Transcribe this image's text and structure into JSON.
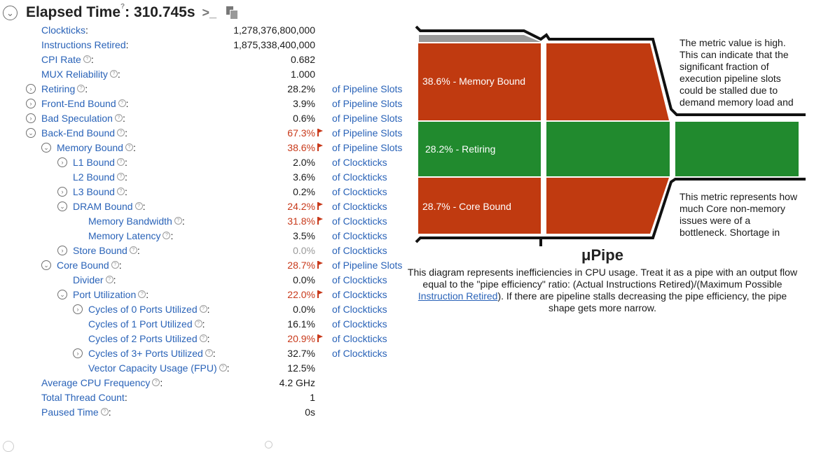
{
  "header": {
    "title": "Elapsed Time",
    "help_glyph": "?",
    "value": ": 310.745s",
    "icons": [
      "collapse-icon",
      "terminal-icon",
      "copy-icon"
    ]
  },
  "metrics": [
    {
      "label": "Clockticks",
      "suffix": ":",
      "value": "1,278,376,800,000",
      "unit": "",
      "indent": 0,
      "expander": "none",
      "help": false,
      "flag": false,
      "color": "normal"
    },
    {
      "label": "Instructions Retired",
      "suffix": ":",
      "value": "1,875,338,400,000",
      "unit": "",
      "indent": 0,
      "expander": "none",
      "help": false,
      "flag": false,
      "color": "normal"
    },
    {
      "label": "CPI Rate",
      "suffix": ":",
      "value": "0.682",
      "unit": "",
      "indent": 0,
      "expander": "none",
      "help": true,
      "flag": false,
      "color": "normal"
    },
    {
      "label": "MUX Reliability",
      "suffix": ":",
      "value": "1.000",
      "unit": "",
      "indent": 0,
      "expander": "none",
      "help": true,
      "flag": false,
      "color": "normal"
    },
    {
      "label": "Retiring",
      "suffix": ":",
      "value": "28.2%",
      "unit": "of Pipeline Slots",
      "indent": 0,
      "expander": "collapsed",
      "help": true,
      "flag": false,
      "color": "normal"
    },
    {
      "label": "Front-End Bound",
      "suffix": ":",
      "value": "3.9%",
      "unit": "of Pipeline Slots",
      "indent": 0,
      "expander": "collapsed",
      "help": true,
      "flag": false,
      "color": "normal"
    },
    {
      "label": "Bad Speculation",
      "suffix": ":",
      "value": "0.6%",
      "unit": "of Pipeline Slots",
      "indent": 0,
      "expander": "collapsed",
      "help": true,
      "flag": false,
      "color": "normal"
    },
    {
      "label": "Back-End Bound",
      "suffix": ":",
      "value": "67.3%",
      "unit": "of Pipeline Slots",
      "indent": 0,
      "expander": "expanded",
      "help": true,
      "flag": true,
      "color": "red"
    },
    {
      "label": "Memory Bound",
      "suffix": ":",
      "value": "38.6%",
      "unit": "of Pipeline Slots",
      "indent": 1,
      "expander": "expanded",
      "help": true,
      "flag": true,
      "color": "red"
    },
    {
      "label": "L1 Bound",
      "suffix": ":",
      "value": "2.0%",
      "unit": "of Clockticks",
      "indent": 2,
      "expander": "collapsed",
      "help": true,
      "flag": false,
      "color": "normal"
    },
    {
      "label": "L2 Bound",
      "suffix": ":",
      "value": "3.6%",
      "unit": "of Clockticks",
      "indent": 2,
      "expander": "none",
      "help": true,
      "flag": false,
      "color": "normal"
    },
    {
      "label": "L3 Bound",
      "suffix": ":",
      "value": "0.2%",
      "unit": "of Clockticks",
      "indent": 2,
      "expander": "collapsed",
      "help": true,
      "flag": false,
      "color": "normal"
    },
    {
      "label": "DRAM Bound",
      "suffix": ":",
      "value": "24.2%",
      "unit": "of Clockticks",
      "indent": 2,
      "expander": "expanded",
      "help": true,
      "flag": true,
      "color": "red"
    },
    {
      "label": "Memory Bandwidth",
      "suffix": ":",
      "value": "31.8%",
      "unit": "of Clockticks",
      "indent": 3,
      "expander": "none",
      "help": true,
      "flag": true,
      "color": "red"
    },
    {
      "label": "Memory Latency",
      "suffix": ":",
      "value": "3.5%",
      "unit": "of Clockticks",
      "indent": 3,
      "expander": "none",
      "help": true,
      "flag": false,
      "color": "normal"
    },
    {
      "label": "Store Bound",
      "suffix": ":",
      "value": "0.0%",
      "unit": "of Clockticks",
      "indent": 2,
      "expander": "collapsed",
      "help": true,
      "flag": false,
      "color": "grey"
    },
    {
      "label": "Core Bound",
      "suffix": ":",
      "value": "28.7%",
      "unit": "of Pipeline Slots",
      "indent": 1,
      "expander": "expanded",
      "help": true,
      "flag": true,
      "color": "red"
    },
    {
      "label": "Divider",
      "suffix": ":",
      "value": "0.0%",
      "unit": "of Clockticks",
      "indent": 2,
      "expander": "none",
      "help": true,
      "flag": false,
      "color": "normal"
    },
    {
      "label": "Port Utilization",
      "suffix": ":",
      "value": "22.0%",
      "unit": "of Clockticks",
      "indent": 2,
      "expander": "expanded",
      "help": true,
      "flag": true,
      "color": "red"
    },
    {
      "label": "Cycles of 0 Ports Utilized",
      "suffix": ":",
      "value": "0.0%",
      "unit": "of Clockticks",
      "indent": 3,
      "expander": "collapsed",
      "help": true,
      "flag": false,
      "color": "normal"
    },
    {
      "label": "Cycles of 1 Port Utilized",
      "suffix": ":",
      "value": "16.1%",
      "unit": "of Clockticks",
      "indent": 3,
      "expander": "none",
      "help": true,
      "flag": false,
      "color": "normal"
    },
    {
      "label": "Cycles of 2 Ports Utilized",
      "suffix": ":",
      "value": "20.9%",
      "unit": "of Clockticks",
      "indent": 3,
      "expander": "none",
      "help": true,
      "flag": true,
      "color": "red"
    },
    {
      "label": "Cycles of 3+ Ports Utilized",
      "suffix": ":",
      "value": "32.7%",
      "unit": "of Clockticks",
      "indent": 3,
      "expander": "collapsed",
      "help": true,
      "flag": false,
      "color": "normal"
    },
    {
      "label": "Vector Capacity Usage (FPU)",
      "suffix": ":",
      "value": "12.5%",
      "unit": "",
      "indent": 3,
      "expander": "none",
      "help": true,
      "flag": false,
      "color": "normal"
    },
    {
      "label": "Average CPU Frequency",
      "suffix": ":",
      "value": "4.2 GHz",
      "unit": "",
      "indent": 0,
      "expander": "none",
      "help": true,
      "flag": false,
      "color": "normal"
    },
    {
      "label": "Total Thread Count",
      "suffix": ":",
      "value": "1",
      "unit": "",
      "indent": 0,
      "expander": "none",
      "help": false,
      "flag": false,
      "color": "normal"
    },
    {
      "label": "Paused Time",
      "suffix": ":",
      "value": "0s",
      "unit": "",
      "indent": 0,
      "expander": "none",
      "help": true,
      "flag": false,
      "color": "normal"
    }
  ],
  "pipe": {
    "segments": [
      {
        "label": "38.6% - Memory Bound",
        "value": 38.6,
        "color": "#c03a10"
      },
      {
        "label": "28.2% - Retiring",
        "value": 28.2,
        "color": "#218a2e"
      },
      {
        "label": "28.7% - Core Bound",
        "value": 28.7,
        "color": "#c03a10"
      }
    ],
    "note_top": "The metric value is high. This can indicate that the significant fraction of execution pipeline slots could be stalled due to demand memory load and",
    "note_bottom": "This metric represents how much Core non-memory issues were of a bottleneck. Shortage in",
    "title": "μPipe",
    "desc_before": "This diagram represents inefficiencies in CPU usage. Treat it as a pipe with an output flow equal to the \"pipe efficiency\" ratio: (Actual Instructions Retired)/(Maximum Possible ",
    "desc_link": "Instruction Retired",
    "desc_after": "). If there are pipeline stalls decreasing the pipe efficiency, the pipe shape gets more narrow."
  }
}
